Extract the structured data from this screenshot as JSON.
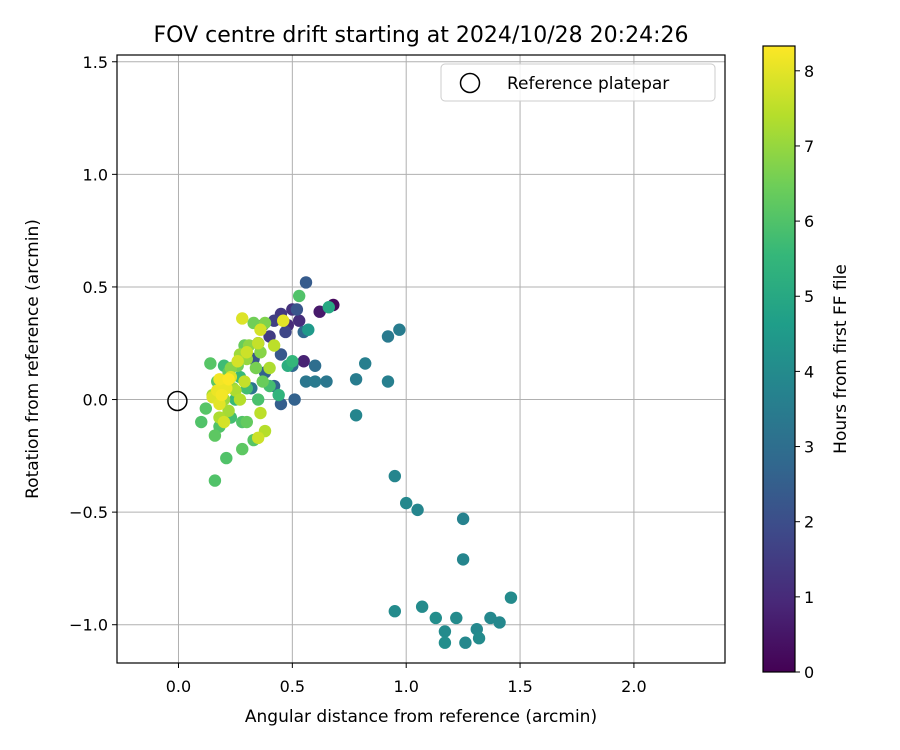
{
  "chart_data": {
    "type": "scatter",
    "title": "FOV centre drift starting at 2024/10/28 20:24:26",
    "xlabel": "Angular distance from reference (arcmin)",
    "ylabel": "Rotation from reference (arcmin)",
    "xlim": [
      -0.27,
      2.4
    ],
    "ylim": [
      -1.17,
      1.53
    ],
    "xticks": [
      0.0,
      0.5,
      1.0,
      1.5,
      2.0
    ],
    "xtick_labels": [
      "0.0",
      "0.5",
      "1.0",
      "1.5",
      "2.0"
    ],
    "yticks": [
      -1.0,
      -0.5,
      0.0,
      0.5,
      1.0,
      1.5
    ],
    "ytick_labels": [
      "−1.0",
      "−0.5",
      "0.0",
      "0.5",
      "1.0",
      "1.5"
    ],
    "grid": true,
    "legend": {
      "position": "top-right",
      "entries": [
        "Reference platepar"
      ]
    },
    "reference_point": {
      "x": 0.0,
      "y": 0.0
    },
    "colorbar": {
      "label": "Hours from first FF file",
      "colormap": "viridis",
      "range": [
        0,
        8.33
      ],
      "ticks": [
        0,
        1,
        2,
        3,
        4,
        5,
        6,
        7,
        8
      ],
      "tick_labels": [
        "0",
        "1",
        "2",
        "3",
        "4",
        "5",
        "6",
        "7",
        "8"
      ]
    },
    "colormap_stops": [
      "#440154",
      "#482878",
      "#3e4989",
      "#31688e",
      "#26828e",
      "#1f9e89",
      "#35b779",
      "#6ece58",
      "#b5de2b",
      "#fde725"
    ],
    "series": [
      {
        "columns": [
          "x",
          "y",
          "hours"
        ],
        "points": [
          [
            0.68,
            0.42,
            0.2
          ],
          [
            0.62,
            0.39,
            0.6
          ],
          [
            0.55,
            0.17,
            0.8
          ],
          [
            0.48,
            0.33,
            1.0
          ],
          [
            0.5,
            0.4,
            1.2
          ],
          [
            0.45,
            0.38,
            1.4
          ],
          [
            0.53,
            0.35,
            1.1
          ],
          [
            0.42,
            0.35,
            1.6
          ],
          [
            0.47,
            0.3,
            1.8
          ],
          [
            0.4,
            0.28,
            1.5
          ],
          [
            0.37,
            0.33,
            2.0
          ],
          [
            0.52,
            0.4,
            2.2
          ],
          [
            0.45,
            0.2,
            2.3
          ],
          [
            0.35,
            0.25,
            2.5
          ],
          [
            0.33,
            0.18,
            2.2
          ],
          [
            0.38,
            0.12,
            2.6
          ],
          [
            0.42,
            0.06,
            2.7
          ],
          [
            0.45,
            -0.02,
            2.5
          ],
          [
            0.51,
            0.0,
            2.6
          ],
          [
            0.56,
            0.52,
            2.4
          ],
          [
            0.55,
            0.3,
            2.8
          ],
          [
            0.5,
            0.15,
            2.9
          ],
          [
            0.6,
            0.15,
            3.0
          ],
          [
            0.32,
            0.05,
            3.2
          ],
          [
            0.56,
            0.08,
            3.3
          ],
          [
            0.6,
            0.08,
            3.4
          ],
          [
            0.65,
            0.08,
            3.3
          ],
          [
            0.78,
            0.09,
            3.5
          ],
          [
            0.82,
            0.16,
            3.6
          ],
          [
            0.92,
            0.28,
            3.4
          ],
          [
            0.97,
            0.31,
            3.5
          ],
          [
            0.92,
            0.08,
            3.6
          ],
          [
            0.78,
            -0.07,
            3.8
          ],
          [
            0.95,
            -0.34,
            3.8
          ],
          [
            1.0,
            -0.46,
            3.9
          ],
          [
            1.05,
            -0.49,
            3.8
          ],
          [
            1.25,
            -0.53,
            3.7
          ],
          [
            1.25,
            -0.71,
            3.8
          ],
          [
            0.95,
            -0.94,
            4.0
          ],
          [
            1.07,
            -0.92,
            4.0
          ],
          [
            1.13,
            -0.97,
            4.1
          ],
          [
            1.17,
            -1.03,
            4.0
          ],
          [
            1.17,
            -1.08,
            4.1
          ],
          [
            1.22,
            -0.97,
            4.0
          ],
          [
            1.26,
            -1.08,
            3.9
          ],
          [
            1.31,
            -1.02,
            3.9
          ],
          [
            1.32,
            -1.06,
            4.0
          ],
          [
            1.37,
            -0.97,
            3.9
          ],
          [
            1.41,
            -0.99,
            3.9
          ],
          [
            1.46,
            -0.88,
            4.0
          ],
          [
            0.57,
            0.31,
            4.5
          ],
          [
            0.66,
            0.41,
            5.0
          ],
          [
            0.48,
            0.15,
            5.2
          ],
          [
            0.5,
            0.17,
            5.5
          ],
          [
            0.4,
            0.06,
            5.8
          ],
          [
            0.3,
            0.05,
            5.8
          ],
          [
            0.25,
            0.0,
            5.6
          ],
          [
            0.2,
            0.15,
            5.7
          ],
          [
            0.27,
            0.1,
            5.6
          ],
          [
            0.35,
            0.0,
            5.9
          ],
          [
            0.28,
            -0.1,
            6.0
          ],
          [
            0.23,
            -0.08,
            5.8
          ],
          [
            0.18,
            -0.12,
            6.0
          ],
          [
            0.1,
            -0.1,
            6.0
          ],
          [
            0.12,
            -0.04,
            6.1
          ],
          [
            0.16,
            -0.16,
            6.2
          ],
          [
            0.21,
            -0.26,
            6.0
          ],
          [
            0.16,
            -0.36,
            6.0
          ],
          [
            0.28,
            -0.22,
            6.2
          ],
          [
            0.33,
            -0.18,
            6.1
          ],
          [
            0.3,
            -0.1,
            6.3
          ],
          [
            0.14,
            0.16,
            6.1
          ],
          [
            0.17,
            0.08,
            6.2
          ],
          [
            0.22,
            0.12,
            6.3
          ],
          [
            0.26,
            0.15,
            6.5
          ],
          [
            0.29,
            0.24,
            6.4
          ],
          [
            0.33,
            0.34,
            6.5
          ],
          [
            0.38,
            0.34,
            6.7
          ],
          [
            0.53,
            0.46,
            6.0
          ],
          [
            0.36,
            0.21,
            6.8
          ],
          [
            0.3,
            0.18,
            7.0
          ],
          [
            0.24,
            0.05,
            7.0
          ],
          [
            0.2,
            0.0,
            7.1
          ],
          [
            0.22,
            -0.05,
            7.2
          ],
          [
            0.18,
            -0.08,
            7.3
          ],
          [
            0.38,
            -0.14,
            7.4
          ],
          [
            0.4,
            0.14,
            7.3
          ],
          [
            0.42,
            0.24,
            7.5
          ],
          [
            0.35,
            0.25,
            7.6
          ],
          [
            0.3,
            0.21,
            7.7
          ],
          [
            0.26,
            0.17,
            7.8
          ],
          [
            0.23,
            0.1,
            7.9
          ],
          [
            0.2,
            0.07,
            8.0
          ],
          [
            0.17,
            0.04,
            8.1
          ],
          [
            0.19,
            0.02,
            8.2
          ],
          [
            0.21,
            0.05,
            8.1
          ],
          [
            0.18,
            -0.02,
            8.0
          ],
          [
            0.15,
            0.01,
            7.9
          ],
          [
            0.28,
            0.36,
            7.9
          ],
          [
            0.36,
            0.31,
            7.8
          ],
          [
            0.29,
            0.08,
            7.6
          ],
          [
            0.36,
            -0.06,
            7.5
          ],
          [
            0.35,
            -0.17,
            7.7
          ],
          [
            0.2,
            -0.1,
            7.8
          ],
          [
            0.46,
            0.35,
            8.0
          ],
          [
            0.22,
            0.09,
            8.3
          ],
          [
            0.18,
            0.09,
            8.2
          ],
          [
            0.27,
            0.0,
            7.4
          ],
          [
            0.25,
            0.04,
            7.3
          ],
          [
            0.15,
            0.02,
            7.2
          ],
          [
            0.44,
            0.02,
            5.4
          ],
          [
            0.31,
            0.24,
            6.9
          ],
          [
            0.27,
            0.2,
            7.1
          ],
          [
            0.34,
            0.14,
            6.6
          ],
          [
            0.37,
            0.08,
            6.4
          ],
          [
            0.23,
            0.14,
            6.8
          ]
        ]
      }
    ]
  }
}
